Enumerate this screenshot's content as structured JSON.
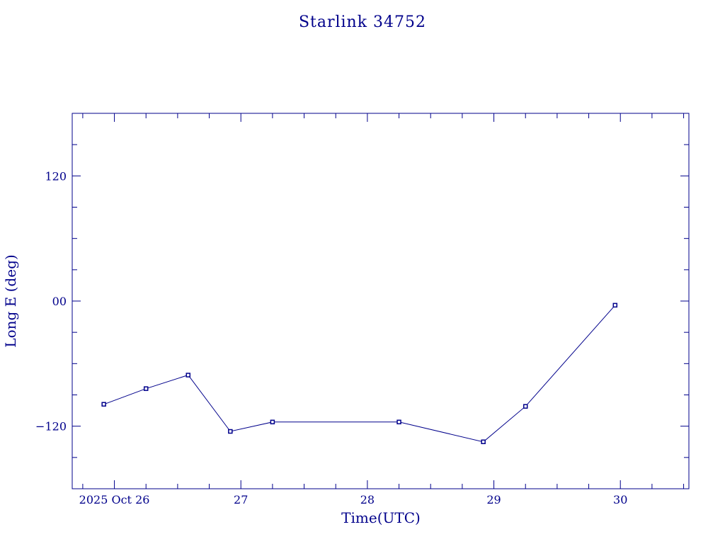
{
  "colors": {
    "ink": "#00008b",
    "background": "#ffffff"
  },
  "chart_data": {
    "type": "line",
    "title": "Starlink 34752",
    "xlabel": "Time(UTC)",
    "ylabel": "Long E (deg)",
    "x_axis_kind": "date",
    "xlim": [
      "2025-10-25T16:00:00Z",
      "2025-10-30T13:00:00Z"
    ],
    "ylim": [
      -180,
      180
    ],
    "x_ticks": [
      {
        "value": "2025-10-26T00:00:00Z",
        "label": "2025 Oct 26"
      },
      {
        "value": "2025-10-27T00:00:00Z",
        "label": "27"
      },
      {
        "value": "2025-10-28T00:00:00Z",
        "label": "28"
      },
      {
        "value": "2025-10-29T00:00:00Z",
        "label": "29"
      },
      {
        "value": "2025-10-30T00:00:00Z",
        "label": "30"
      }
    ],
    "y_ticks": [
      {
        "value": 120,
        "label": "120"
      },
      {
        "value": 0,
        "label": "00"
      },
      {
        "value": -120,
        "label": "−120"
      }
    ],
    "y_minor_step": 30,
    "x_minor_step_hours": 6,
    "grid": false,
    "marker": "square",
    "series": [
      {
        "x": [
          "2025-10-25T22:00:00Z",
          "2025-10-26T06:00:00Z",
          "2025-10-26T14:00:00Z",
          "2025-10-26T22:00:00Z",
          "2025-10-27T06:00:00Z",
          "2025-10-28T06:00:00Z",
          "2025-10-28T22:00:00Z",
          "2025-10-29T06:00:00Z",
          "2025-10-29T23:00:00Z"
        ],
        "y": [
          -99,
          -84,
          -71,
          -125,
          -116,
          -116,
          -135,
          -101,
          -4
        ]
      }
    ]
  }
}
